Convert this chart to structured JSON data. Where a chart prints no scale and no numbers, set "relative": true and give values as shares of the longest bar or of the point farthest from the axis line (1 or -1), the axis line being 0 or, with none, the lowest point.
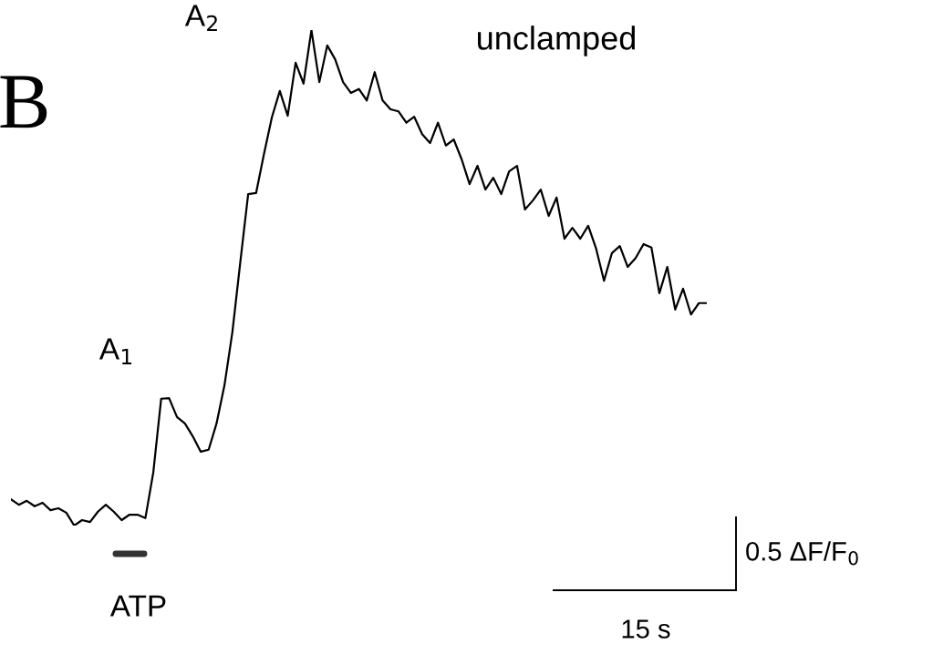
{
  "chart_data": {
    "type": "line",
    "title": "B",
    "relative": true,
    "tick_labels": false,
    "categories": [
      null,
      null,
      null,
      null,
      null,
      null,
      null,
      null,
      null,
      null,
      null,
      null,
      null,
      null,
      null,
      null,
      null,
      null,
      null,
      null,
      null,
      null,
      null,
      null,
      null,
      null,
      null,
      null,
      null,
      null,
      null,
      null,
      null,
      null,
      null,
      null,
      null,
      null,
      null,
      null,
      null,
      null,
      null,
      null,
      null,
      null,
      null,
      null,
      null,
      null,
      null,
      null,
      null,
      null,
      null,
      null,
      null,
      null,
      null,
      null,
      null,
      null,
      null,
      null,
      null,
      null,
      null,
      null,
      null,
      null,
      null,
      null,
      null,
      null,
      null,
      null,
      null,
      null,
      null,
      null,
      null,
      null,
      null,
      null,
      null,
      null,
      null,
      null,
      null
    ],
    "series": [
      {
        "color": "#000000",
        "values": [
          0.053,
          0.042,
          0.05,
          0.039,
          0.046,
          0.031,
          0.035,
          0.026,
          0,
          0.011,
          0.007,
          0.028,
          0.042,
          0.028,
          0.011,
          0.022,
          0.022,
          0.015,
          0.107,
          0.256,
          0.257,
          0.219,
          0.206,
          0.18,
          0.149,
          0.153,
          0.206,
          0.283,
          0.39,
          0.531,
          0.669,
          0.671,
          0.75,
          0.824,
          0.877,
          0.827,
          0.934,
          0.892,
          1,
          0.895,
          0.969,
          0.941,
          0.895,
          0.873,
          0.881,
          0.858,
          0.915,
          0.858,
          0.84,
          0.836,
          0.813,
          0.825,
          0.79,
          0.772,
          0.813,
          0.767,
          0.779,
          0.739,
          0.689,
          0.726,
          0.678,
          0.702,
          0.669,
          0.715,
          0.726,
          0.638,
          0.656,
          0.678,
          0.625,
          0.662,
          0.579,
          0.601,
          0.579,
          0.605,
          0.559,
          0.494,
          0.55,
          0.564,
          0.522,
          0.54,
          0.568,
          0.561,
          0.469,
          0.522,
          0.436,
          0.478,
          0.426,
          0.449,
          0.449
        ]
      }
    ],
    "annotations": [
      "A$_{1}$",
      "A$_{2}$",
      "unclamped",
      "ATP",
      "0.5 ΔF/F$_{0}$",
      "15 s"
    ]
  }
}
